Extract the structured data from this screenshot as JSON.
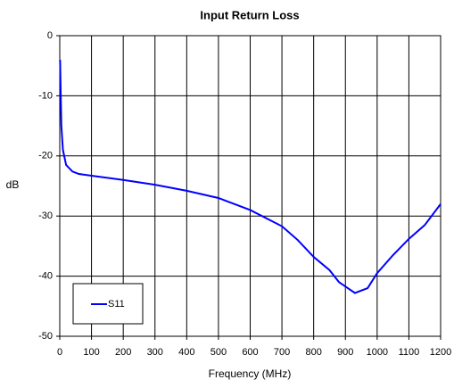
{
  "chart_data": {
    "type": "line",
    "title": "Input Return Loss",
    "xlabel": "Frequency (MHz)",
    "ylabel": "dB",
    "x": [
      1,
      5,
      10,
      20,
      40,
      60,
      100,
      200,
      300,
      400,
      500,
      600,
      700,
      750,
      800,
      850,
      880,
      930,
      970,
      1000,
      1050,
      1100,
      1150,
      1200
    ],
    "series": [
      {
        "name": "S11",
        "color": "#0000ff",
        "values": [
          -4,
          -15,
          -19,
          -21.5,
          -22.6,
          -23,
          -23.3,
          -24,
          -24.8,
          -25.8,
          -27,
          -29,
          -31.7,
          -34,
          -36.8,
          -39,
          -41,
          -42.8,
          -42,
          -39.5,
          -36.5,
          -33.8,
          -31.5,
          -28
        ]
      }
    ],
    "xlim": [
      0,
      1200
    ],
    "xticks": [
      0,
      100,
      200,
      300,
      400,
      500,
      600,
      700,
      800,
      900,
      1000,
      1100,
      1200
    ],
    "ylim": [
      -50,
      0
    ],
    "yticks": [
      -50,
      -40,
      -30,
      -20,
      -10,
      0
    ],
    "grid": true,
    "legend": "lower left"
  }
}
